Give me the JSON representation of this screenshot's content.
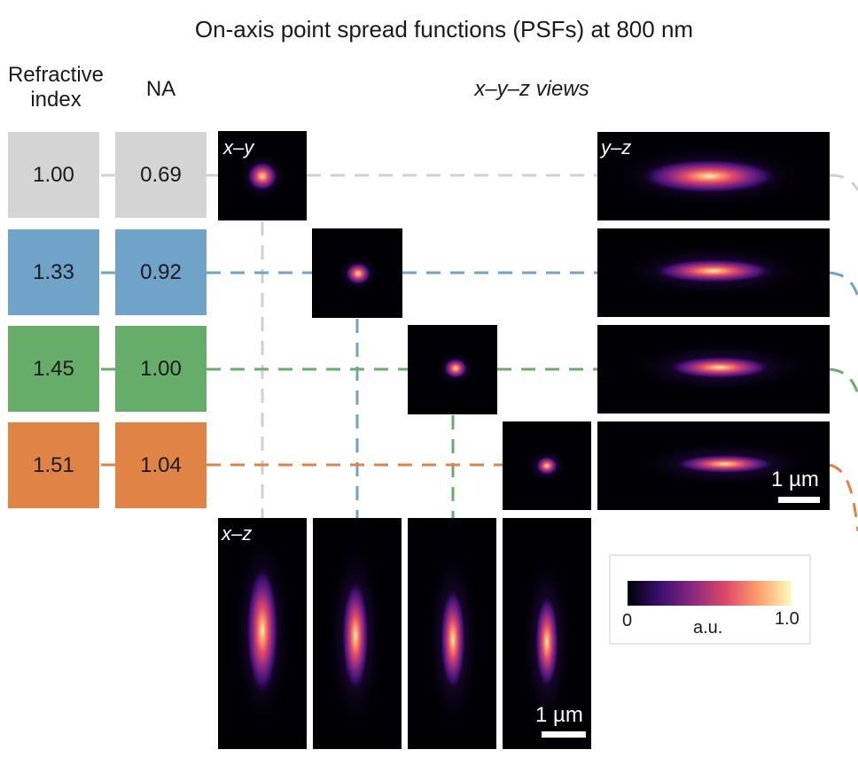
{
  "title": "On-axis point spread functions (PSFs) at 800 nm",
  "headers": {
    "refractive_index": [
      "Refractive",
      "index"
    ],
    "na": "NA",
    "views": "x–y–z views"
  },
  "rows": [
    {
      "refractive_index": "1.00",
      "na": "0.69",
      "color": "#d4d4d4"
    },
    {
      "refractive_index": "1.33",
      "na": "0.92",
      "color": "#6fa3c8"
    },
    {
      "refractive_index": "1.45",
      "na": "1.00",
      "color": "#66ad6a"
    },
    {
      "refractive_index": "1.51",
      "na": "1.04",
      "color": "#e08446"
    }
  ],
  "panel_labels": {
    "xy": "x–y",
    "yz": "y–z",
    "xz": "x–z"
  },
  "scale_bar": "1 µm",
  "colorbar": {
    "min": "0",
    "max": "1.0",
    "label": "a.u.",
    "colors": [
      "#000004",
      "#3b0f70",
      "#8c2981",
      "#de4968",
      "#fe9f6d",
      "#fcfdbf"
    ]
  }
}
